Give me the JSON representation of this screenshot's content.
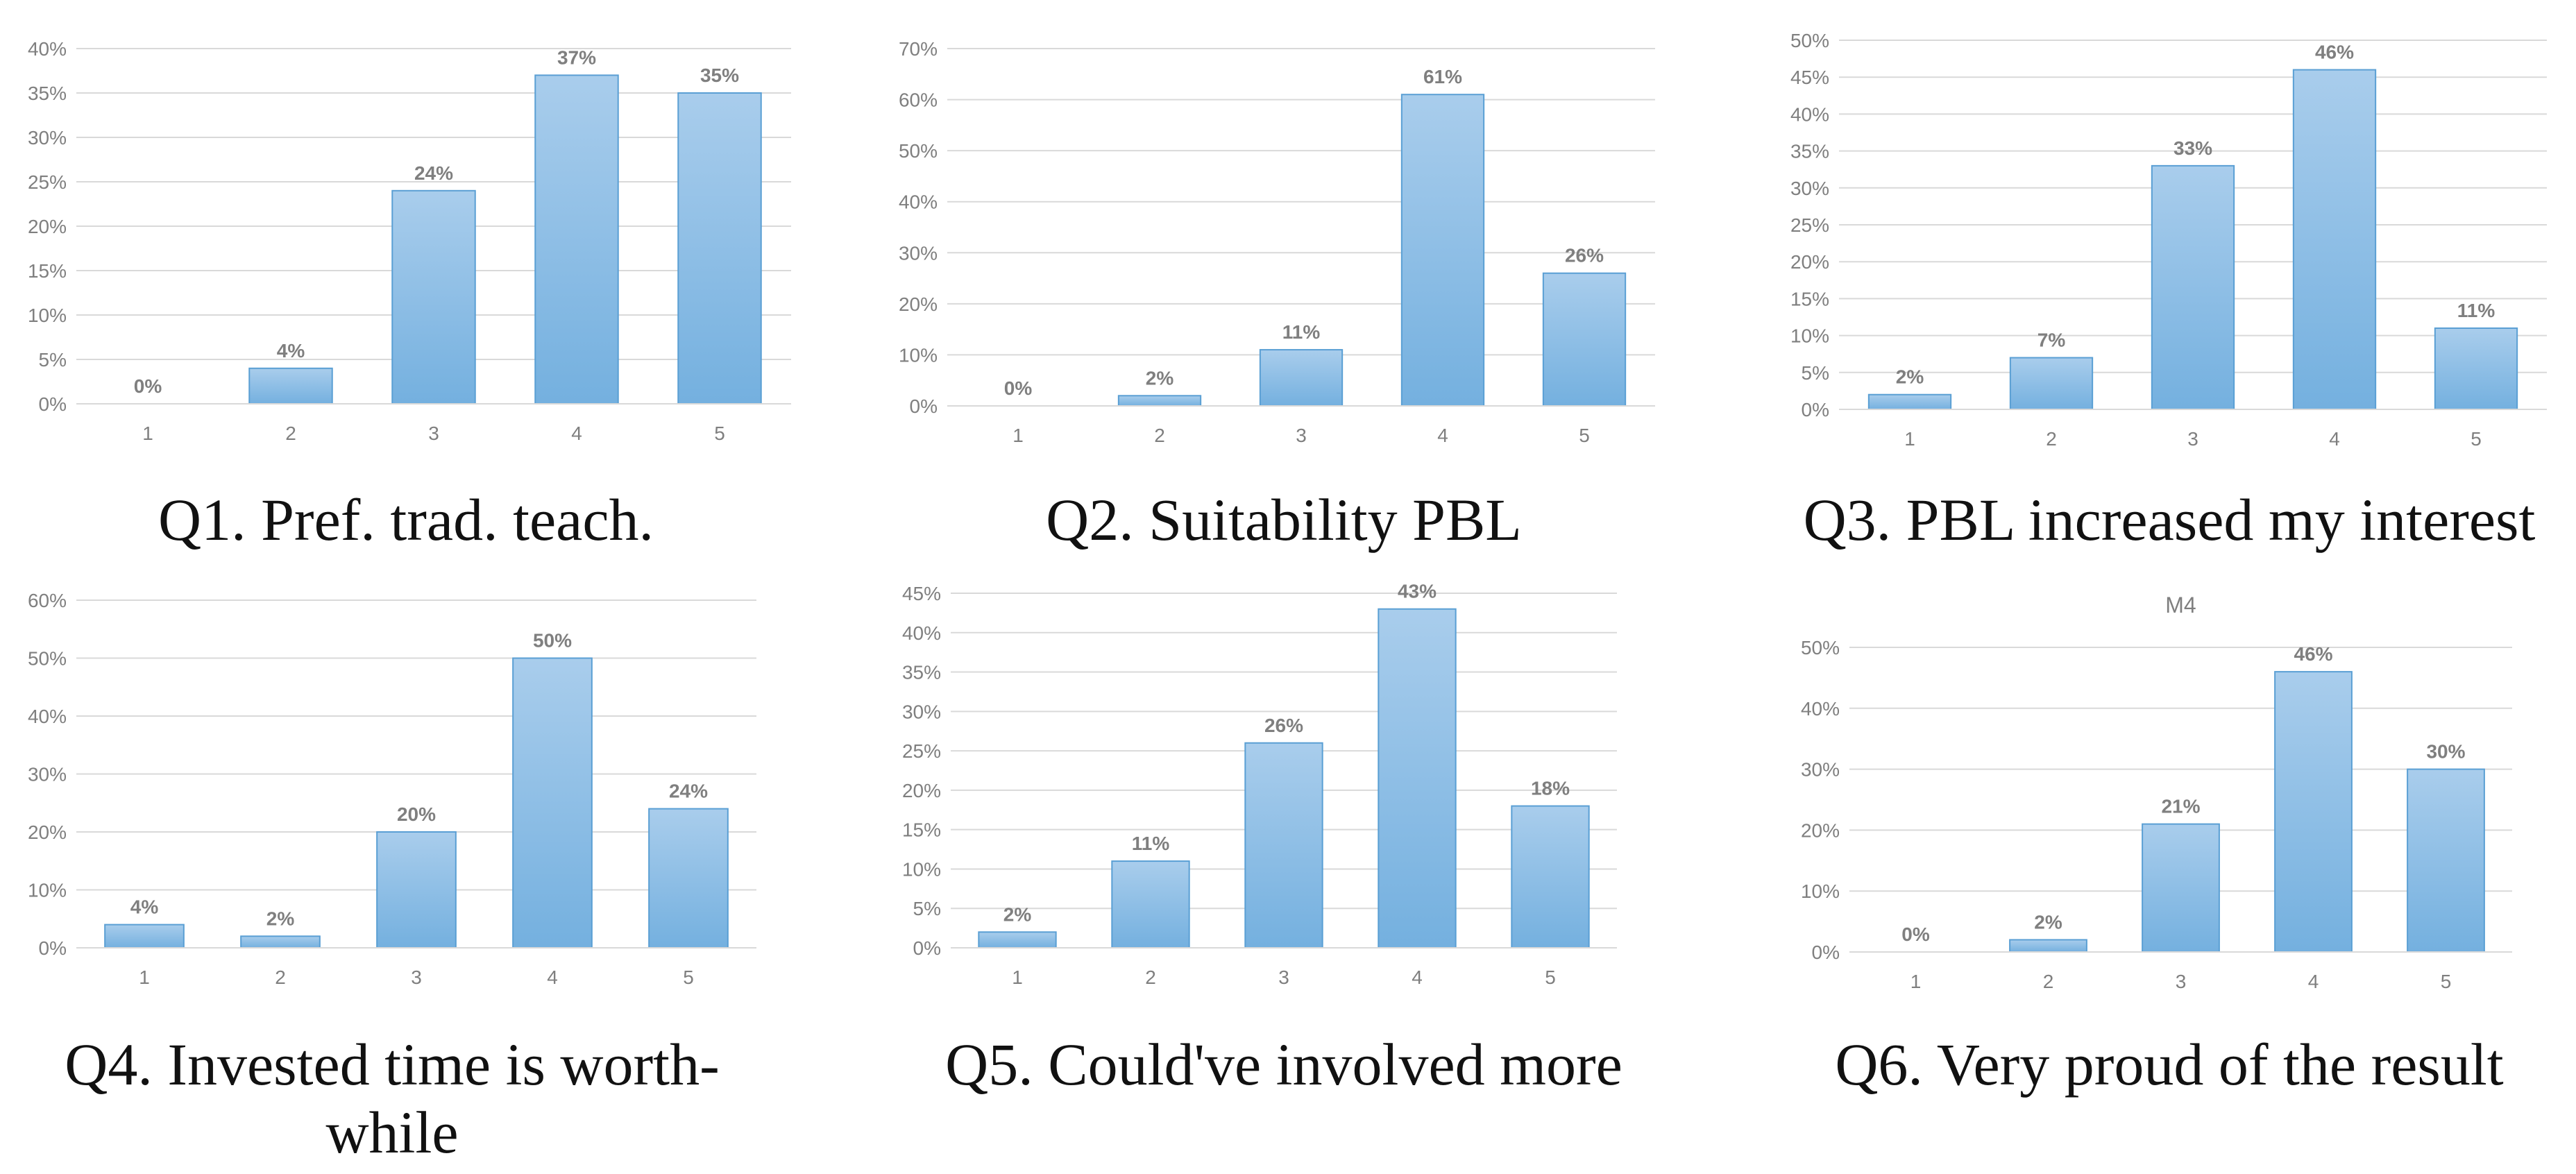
{
  "colors": {
    "bar_top": "#a9cdec",
    "bar_bottom": "#74b0df",
    "bar_edge": "#5a9fd4",
    "grid": "#d9d9d9",
    "text": "#7f7f7f"
  },
  "chart_data": [
    {
      "type": "bar",
      "title": "",
      "caption": "Q1. Pref. trad. teach.",
      "categories": [
        "1",
        "2",
        "3",
        "4",
        "5"
      ],
      "values": [
        0,
        4,
        24,
        37,
        35
      ],
      "value_labels": [
        "0%",
        "4%",
        "24%",
        "37%",
        "35%"
      ],
      "ylim": [
        0,
        40
      ],
      "yticks": [
        0,
        5,
        10,
        15,
        20,
        25,
        30,
        35,
        40
      ],
      "ytick_labels": [
        "0%",
        "5%",
        "10%",
        "15%",
        "20%",
        "25%",
        "30%",
        "35%",
        "40%"
      ],
      "xlabel": "",
      "ylabel": "",
      "grid": true
    },
    {
      "type": "bar",
      "title": "",
      "caption": "Q2. Suitability PBL",
      "categories": [
        "1",
        "2",
        "3",
        "4",
        "5"
      ],
      "values": [
        0,
        2,
        11,
        61,
        26
      ],
      "value_labels": [
        "0%",
        "2%",
        "11%",
        "61%",
        "26%"
      ],
      "ylim": [
        0,
        70
      ],
      "yticks": [
        0,
        10,
        20,
        30,
        40,
        50,
        60,
        70
      ],
      "ytick_labels": [
        "0%",
        "10%",
        "20%",
        "30%",
        "40%",
        "50%",
        "60%",
        "70%"
      ],
      "xlabel": "",
      "ylabel": "",
      "grid": true
    },
    {
      "type": "bar",
      "title": "",
      "caption": "Q3. PBL increased my interest",
      "categories": [
        "1",
        "2",
        "3",
        "4",
        "5"
      ],
      "values": [
        2,
        7,
        33,
        46,
        11
      ],
      "value_labels": [
        "2%",
        "7%",
        "33%",
        "46%",
        "11%"
      ],
      "ylim": [
        0,
        50
      ],
      "yticks": [
        0,
        5,
        10,
        15,
        20,
        25,
        30,
        35,
        40,
        45,
        50
      ],
      "ytick_labels": [
        "0%",
        "5%",
        "10%",
        "15%",
        "20%",
        "25%",
        "30%",
        "35%",
        "40%",
        "45%",
        "50%"
      ],
      "xlabel": "",
      "ylabel": "",
      "grid": true
    },
    {
      "type": "bar",
      "title": "",
      "caption": "Q4. Invested time is worth-while",
      "categories": [
        "1",
        "2",
        "3",
        "4",
        "5"
      ],
      "values": [
        4,
        2,
        20,
        50,
        24
      ],
      "value_labels": [
        "4%",
        "2%",
        "20%",
        "50%",
        "24%"
      ],
      "ylim": [
        0,
        60
      ],
      "yticks": [
        0,
        10,
        20,
        30,
        40,
        50,
        60
      ],
      "ytick_labels": [
        "0%",
        "10%",
        "20%",
        "30%",
        "40%",
        "50%",
        "60%"
      ],
      "xlabel": "",
      "ylabel": "",
      "grid": true
    },
    {
      "type": "bar",
      "title": "",
      "caption": "Q5. Could've involved more",
      "categories": [
        "1",
        "2",
        "3",
        "4",
        "5"
      ],
      "values": [
        2,
        11,
        26,
        43,
        18
      ],
      "value_labels": [
        "2%",
        "11%",
        "26%",
        "43%",
        "18%"
      ],
      "ylim": [
        0,
        45
      ],
      "yticks": [
        0,
        5,
        10,
        15,
        20,
        25,
        30,
        35,
        40,
        45
      ],
      "ytick_labels": [
        "0%",
        "5%",
        "10%",
        "15%",
        "20%",
        "25%",
        "30%",
        "35%",
        "40%",
        "45%"
      ],
      "xlabel": "",
      "ylabel": "",
      "grid": true
    },
    {
      "type": "bar",
      "title": "M4",
      "caption": "Q6. Very proud of the result",
      "categories": [
        "1",
        "2",
        "3",
        "4",
        "5"
      ],
      "values": [
        0,
        2,
        21,
        46,
        30
      ],
      "value_labels": [
        "0%",
        "2%",
        "21%",
        "46%",
        "30%"
      ],
      "ylim": [
        0,
        50
      ],
      "yticks": [
        0,
        10,
        20,
        30,
        40,
        50
      ],
      "ytick_labels": [
        "0%",
        "10%",
        "20%",
        "30%",
        "40%",
        "50%"
      ],
      "xlabel": "",
      "ylabel": "",
      "grid": true
    }
  ]
}
